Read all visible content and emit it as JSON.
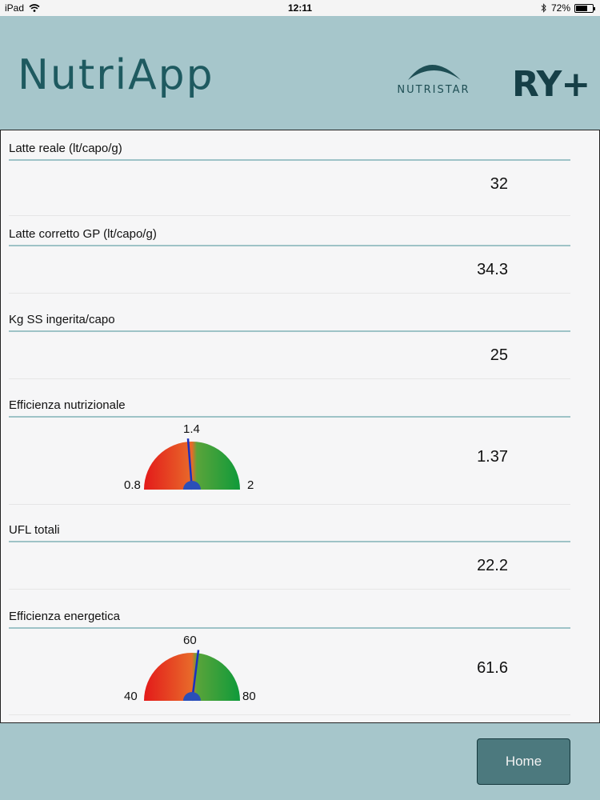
{
  "status_bar": {
    "device": "iPad",
    "time": "12:11",
    "battery": "72%",
    "battery_level": 0.72
  },
  "header": {
    "app_title": "NutriApp",
    "brand1": "NUTRISTAR",
    "brand2": "RY+"
  },
  "metrics": [
    {
      "label": "Latte reale (lt/capo/g)",
      "value": "32"
    },
    {
      "label": "Latte corretto GP (lt/capo/g)",
      "value": "34.3"
    },
    {
      "label": "Kg SS ingerita/capo",
      "value": "25"
    },
    {
      "label": "Efficienza nutrizionale",
      "value": "1.37",
      "gauge": {
        "min_label": "0.8",
        "mid_label": "1.4",
        "max_label": "2",
        "min": 0.8,
        "max": 2,
        "value": 1.37
      }
    },
    {
      "label": "UFL totali",
      "value": "22.2"
    },
    {
      "label": "Efficienza energetica",
      "value": "61.6",
      "gauge": {
        "min_label": "40",
        "mid_label": "60",
        "max_label": "80",
        "min": 40,
        "max": 80,
        "value": 61.6
      }
    }
  ],
  "footer": {
    "home_label": "Home"
  },
  "colors": {
    "header_bg": "#a6c6cb",
    "title": "#1e5a60",
    "rule": "#9ec3c7",
    "button": "#4c797e",
    "needle": "#1a2fc0"
  }
}
